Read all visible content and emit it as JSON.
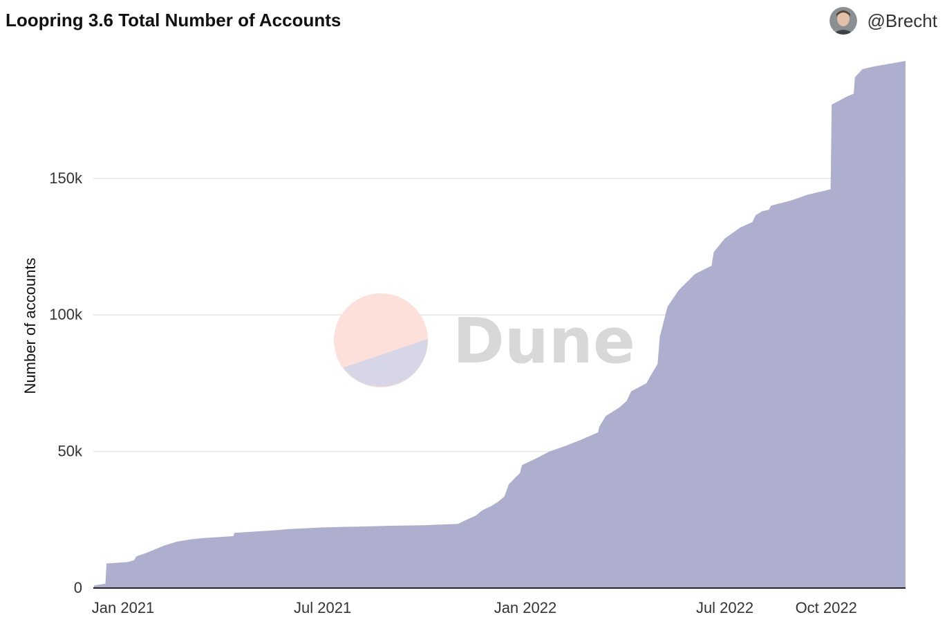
{
  "header": {
    "title": "Loopring 3.6 Total Number of Accounts",
    "author": "@Brecht",
    "avatar_icon": "user-avatar-icon"
  },
  "watermark": {
    "text": "Dune",
    "logo_icon": "dune-logo-icon",
    "colors": {
      "top": "#fde0da",
      "bottom": "#d6d6e6",
      "text": "#d8d8d8"
    }
  },
  "colors": {
    "area": "#aaaacb",
    "grid": "#e6e6e6",
    "axis": "#222222"
  },
  "chart_data": {
    "type": "area",
    "title": "Loopring 3.6 Total Number of Accounts",
    "xlabel": "",
    "ylabel": "Number of accounts",
    "xlim": [
      "2020-12-05",
      "2022-12-12"
    ],
    "ylim": [
      0,
      192000
    ],
    "yticks": [
      0,
      50000,
      100000,
      150000
    ],
    "ytick_labels": [
      "0",
      "50k",
      "100k",
      "150k"
    ],
    "xticks": [
      "2021-01-01",
      "2021-07-01",
      "2022-01-01",
      "2022-07-01",
      "2022-10-01"
    ],
    "xtick_labels": [
      "Jan 2021",
      "Jul 2021",
      "Jan 2022",
      "Jul 2022",
      "Oct 2022"
    ],
    "grid": true,
    "series": [
      {
        "name": "",
        "points": [
          [
            "2020-12-05",
            0
          ],
          [
            "2020-12-06",
            1000
          ],
          [
            "2020-12-16",
            1600
          ],
          [
            "2020-12-17",
            9000
          ],
          [
            "2021-01-05",
            9500
          ],
          [
            "2021-01-11",
            10200
          ],
          [
            "2021-01-13",
            11600
          ],
          [
            "2021-01-23",
            13000
          ],
          [
            "2021-02-07",
            15500
          ],
          [
            "2021-02-19",
            17000
          ],
          [
            "2021-03-03",
            17800
          ],
          [
            "2021-03-15",
            18300
          ],
          [
            "2021-04-11",
            19000
          ],
          [
            "2021-04-12",
            20200
          ],
          [
            "2021-05-13",
            21000
          ],
          [
            "2021-06-01",
            21600
          ],
          [
            "2021-07-01",
            22200
          ],
          [
            "2021-08-01",
            22500
          ],
          [
            "2021-09-01",
            22800
          ],
          [
            "2021-10-01",
            23000
          ],
          [
            "2021-11-01",
            23500
          ],
          [
            "2021-11-06",
            24500
          ],
          [
            "2021-11-17",
            26500
          ],
          [
            "2021-11-23",
            28500
          ],
          [
            "2021-12-01",
            30000
          ],
          [
            "2021-12-07",
            31500
          ],
          [
            "2021-12-13",
            33500
          ],
          [
            "2021-12-17",
            38000
          ],
          [
            "2021-12-23",
            40500
          ],
          [
            "2021-12-27",
            42000
          ],
          [
            "2021-12-29",
            45000
          ],
          [
            "2022-01-11",
            47500
          ],
          [
            "2022-01-23",
            50000
          ],
          [
            "2022-02-06",
            52000
          ],
          [
            "2022-02-19",
            54000
          ],
          [
            "2022-03-08",
            57000
          ],
          [
            "2022-03-09",
            59000
          ],
          [
            "2022-03-15",
            63000
          ],
          [
            "2022-03-27",
            66000
          ],
          [
            "2022-04-03",
            68500
          ],
          [
            "2022-04-07",
            72000
          ],
          [
            "2022-04-21",
            75000
          ],
          [
            "2022-04-25",
            78000
          ],
          [
            "2022-05-01",
            82000
          ],
          [
            "2022-05-03",
            92000
          ],
          [
            "2022-05-10",
            103000
          ],
          [
            "2022-05-20",
            109000
          ],
          [
            "2022-06-04",
            115000
          ],
          [
            "2022-06-19",
            118000
          ],
          [
            "2022-06-21",
            123000
          ],
          [
            "2022-07-01",
            128000
          ],
          [
            "2022-07-15",
            132000
          ],
          [
            "2022-07-26",
            134000
          ],
          [
            "2022-07-29",
            136500
          ],
          [
            "2022-08-04",
            138000
          ],
          [
            "2022-08-10",
            138500
          ],
          [
            "2022-08-12",
            140000
          ],
          [
            "2022-08-31",
            142000
          ],
          [
            "2022-09-14",
            144000
          ],
          [
            "2022-10-05",
            146000
          ],
          [
            "2022-10-06",
            177000
          ],
          [
            "2022-10-20",
            180000
          ],
          [
            "2022-10-26",
            181000
          ],
          [
            "2022-10-27",
            187000
          ],
          [
            "2022-11-03",
            190000
          ],
          [
            "2022-11-14",
            191000
          ],
          [
            "2022-12-12",
            193000
          ]
        ]
      }
    ]
  }
}
